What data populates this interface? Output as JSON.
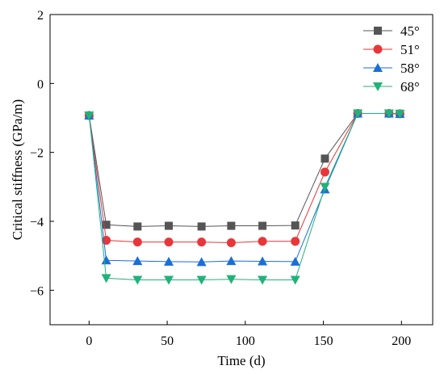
{
  "chart_data": {
    "type": "line",
    "title": "",
    "xlabel": "Time (d)",
    "ylabel": "Critical stiffness (GPa/m)",
    "xlim": [
      -25,
      220
    ],
    "ylim": [
      -7,
      2
    ],
    "xticks": [
      0,
      50,
      100,
      150,
      200
    ],
    "yticks": [
      -6,
      -4,
      -2,
      0,
      2
    ],
    "xtick_labels": [
      "0",
      "50",
      "100",
      "150",
      "200"
    ],
    "ytick_labels": [
      "−6",
      "−4",
      "−2",
      "0",
      "2"
    ],
    "grid": false,
    "legend_position": "top-right",
    "series": [
      {
        "name": "45°",
        "color": "#555555",
        "marker": "square",
        "x": [
          0,
          11,
          31,
          51,
          72,
          91,
          111,
          132,
          151,
          172,
          192,
          199
        ],
        "y": [
          -0.93,
          -4.1,
          -4.15,
          -4.13,
          -4.15,
          -4.13,
          -4.13,
          -4.12,
          -2.18,
          -0.87,
          -0.87,
          -0.88
        ]
      },
      {
        "name": "51°",
        "color": "#e8363a",
        "marker": "circle",
        "x": [
          0,
          11,
          31,
          51,
          72,
          91,
          111,
          132,
          151,
          172,
          192,
          199
        ],
        "y": [
          -0.93,
          -4.55,
          -4.6,
          -4.6,
          -4.6,
          -4.62,
          -4.58,
          -4.58,
          -2.57,
          -0.87,
          -0.87,
          -0.88
        ]
      },
      {
        "name": "58°",
        "color": "#1a6ed8",
        "marker": "triangle-up",
        "x": [
          0,
          11,
          31,
          51,
          72,
          91,
          111,
          132,
          151,
          172,
          192,
          199
        ],
        "y": [
          -0.93,
          -5.13,
          -5.15,
          -5.17,
          -5.18,
          -5.15,
          -5.16,
          -5.17,
          -3.07,
          -0.87,
          -0.87,
          -0.88
        ]
      },
      {
        "name": "68°",
        "color": "#21b27a",
        "marker": "triangle-down",
        "x": [
          0,
          11,
          31,
          51,
          72,
          91,
          111,
          132,
          151,
          172,
          192,
          199
        ],
        "y": [
          -0.93,
          -5.65,
          -5.7,
          -5.7,
          -5.7,
          -5.68,
          -5.7,
          -5.7,
          -3.0,
          -0.87,
          -0.87,
          -0.88
        ]
      }
    ]
  }
}
